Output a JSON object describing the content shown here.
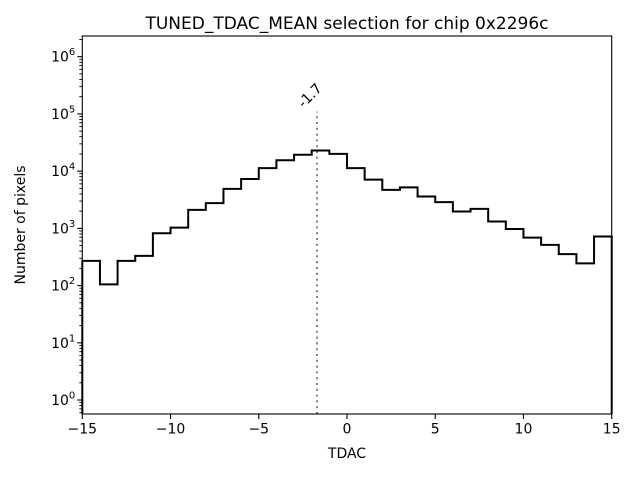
{
  "chart_data": {
    "type": "histogram-step",
    "title": "TUNED_TDAC_MEAN selection for chip 0x2296c",
    "xlabel": "TDAC",
    "ylabel": "Number of pixels",
    "xlim": [
      -15,
      15
    ],
    "ylim": [
      0.57,
      2300000
    ],
    "yscale": "log",
    "x_ticks": [
      -15,
      -10,
      -5,
      0,
      5,
      10,
      15
    ],
    "x_tick_labels": [
      "−15",
      "−10",
      "−5",
      "0",
      "5",
      "10",
      "15"
    ],
    "y_tick_exponents": [
      0,
      1,
      2,
      3,
      4,
      5,
      6
    ],
    "y_tick_base": "10",
    "bin_edges": [
      -15,
      -14,
      -13,
      -12,
      -11,
      -10,
      -9,
      -8,
      -7,
      -6,
      -5,
      -4,
      -3,
      -2,
      -1,
      0,
      1,
      2,
      3,
      4,
      5,
      6,
      7,
      8,
      9,
      10,
      11,
      12,
      13,
      14,
      15
    ],
    "counts": [
      270,
      105,
      270,
      330,
      820,
      1030,
      2100,
      2760,
      4900,
      7300,
      11300,
      15500,
      19300,
      22900,
      20000,
      11300,
      7100,
      4700,
      5200,
      3600,
      2870,
      1970,
      2190,
      1320,
      975,
      690,
      515,
      355,
      245,
      720
    ],
    "line_color": "#000000",
    "grid": false,
    "legend": null,
    "vline": {
      "x": -1.7,
      "label": "-1.7",
      "color": "#808080",
      "style": "dotted",
      "ymax_fraction": 0.8
    }
  }
}
